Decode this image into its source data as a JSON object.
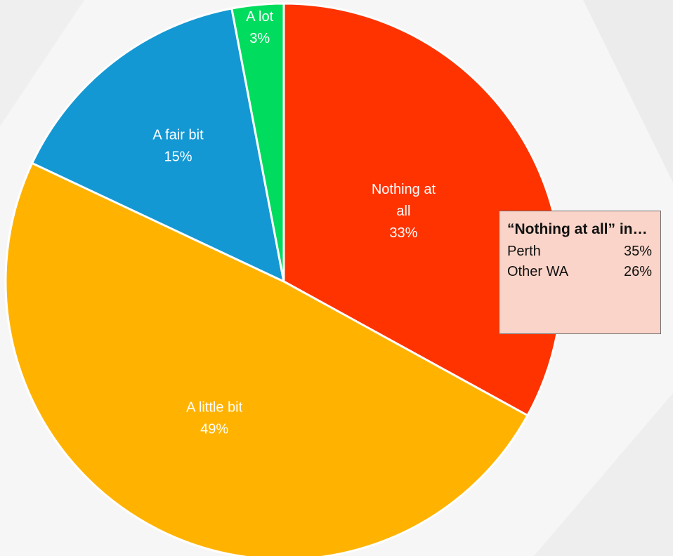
{
  "chart_data": {
    "type": "pie",
    "slices": [
      {
        "label": "Nothing at all",
        "value": 33,
        "value_label": "33%",
        "color": "#ff3300"
      },
      {
        "label": "A little bit",
        "value": 49,
        "value_label": "49%",
        "color": "#ffb300"
      },
      {
        "label": "A fair bit",
        "value": 15,
        "value_label": "15%",
        "color": "#1398d4"
      },
      {
        "label": "A lot",
        "value": 3,
        "value_label": "3%",
        "color": "#00dd5e"
      }
    ],
    "slice_label_lines": [
      [
        "Nothing at",
        "all",
        "33%"
      ],
      [
        "A little bit",
        "49%"
      ],
      [
        "A fair bit",
        "15%"
      ],
      [
        "A lot",
        "3%"
      ]
    ],
    "title": "",
    "legend": "none",
    "start_angle": "12 o'clock, clockwise"
  },
  "callout": {
    "title": "“Nothing at all” in…",
    "rows": [
      {
        "label": "Perth",
        "value": "35%"
      },
      {
        "label": "Other WA",
        "value": "26%"
      }
    ],
    "background": "#fad4c8"
  }
}
